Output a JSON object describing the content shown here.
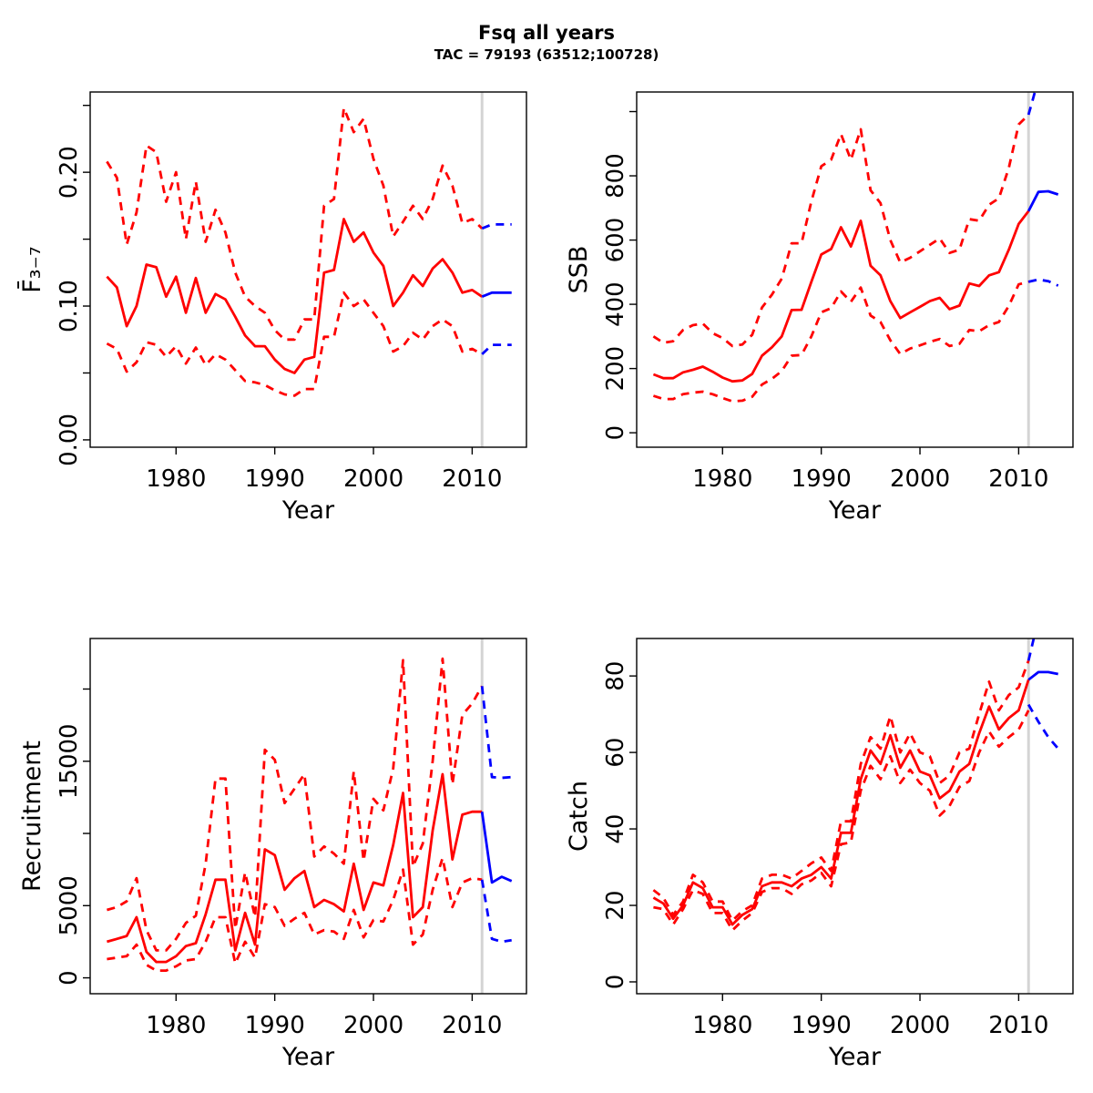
{
  "header": {
    "title": "Fsq all years",
    "subtitle": "TAC = 79193 (63512;100728)"
  },
  "colors": {
    "history": "#ff0000",
    "forecast": "#0000ff",
    "vline": "#d4d4d4",
    "axis": "#000000"
  },
  "chart_data": [
    {
      "type": "line",
      "name": "fbar",
      "title": "",
      "xlabel": "Year",
      "ylabel": "F̄₃₋₇",
      "xlim": [
        1971.3,
        2015.5
      ],
      "ylim": [
        -0.0055,
        0.26
      ],
      "xticks": [
        [
          1980,
          "1980"
        ],
        [
          1990,
          "1990"
        ],
        [
          2000,
          "2000"
        ],
        [
          2010,
          "2010"
        ]
      ],
      "yticks": [
        [
          0,
          "0.00"
        ],
        [
          0.05,
          ""
        ],
        [
          0.1,
          "0.10"
        ],
        [
          0.15,
          ""
        ],
        [
          0.2,
          "0.20"
        ],
        [
          0.25,
          ""
        ]
      ],
      "vline": 2011,
      "grid": false,
      "years": [
        1973,
        1974,
        1975,
        1976,
        1977,
        1978,
        1979,
        1980,
        1981,
        1982,
        1983,
        1984,
        1985,
        1986,
        1987,
        1988,
        1989,
        1990,
        1991,
        1992,
        1993,
        1994,
        1995,
        1996,
        1997,
        1998,
        1999,
        2000,
        2001,
        2002,
        2003,
        2004,
        2005,
        2006,
        2007,
        2008,
        2009,
        2010,
        2011
      ],
      "forecast_years": [
        2011,
        2012,
        2013,
        2014
      ],
      "series": [
        {
          "name": "median",
          "role": "history",
          "style": "solid",
          "values": [
            0.122,
            0.114,
            0.085,
            0.1,
            0.131,
            0.129,
            0.107,
            0.122,
            0.095,
            0.121,
            0.095,
            0.109,
            0.105,
            0.092,
            0.078,
            0.07,
            0.07,
            0.06,
            0.053,
            0.05,
            0.06,
            0.062,
            0.125,
            0.127,
            0.165,
            0.148,
            0.155,
            0.14,
            0.13,
            0.1,
            0.11,
            0.123,
            0.115,
            0.128,
            0.135,
            0.125,
            0.11,
            0.112,
            0.107
          ]
        },
        {
          "name": "upper-ci",
          "role": "history",
          "style": "dashed",
          "values": [
            0.208,
            0.196,
            0.146,
            0.17,
            0.22,
            0.215,
            0.178,
            0.2,
            0.15,
            0.193,
            0.148,
            0.172,
            0.155,
            0.125,
            0.107,
            0.1,
            0.095,
            0.082,
            0.075,
            0.075,
            0.09,
            0.09,
            0.175,
            0.18,
            0.248,
            0.23,
            0.24,
            0.21,
            0.19,
            0.152,
            0.163,
            0.175,
            0.165,
            0.18,
            0.205,
            0.19,
            0.162,
            0.165,
            0.158
          ]
        },
        {
          "name": "lower-ci",
          "role": "history",
          "style": "dashed",
          "values": [
            0.072,
            0.068,
            0.051,
            0.058,
            0.073,
            0.071,
            0.062,
            0.07,
            0.057,
            0.069,
            0.056,
            0.064,
            0.06,
            0.052,
            0.044,
            0.043,
            0.041,
            0.037,
            0.034,
            0.033,
            0.038,
            0.038,
            0.077,
            0.077,
            0.11,
            0.1,
            0.105,
            0.095,
            0.085,
            0.066,
            0.07,
            0.08,
            0.075,
            0.085,
            0.09,
            0.085,
            0.066,
            0.068,
            0.064
          ]
        },
        {
          "name": "forecast-median",
          "role": "forecast",
          "style": "solid",
          "values": [
            0.107,
            0.11,
            0.11,
            0.11
          ]
        },
        {
          "name": "forecast-upper-ci",
          "role": "forecast",
          "style": "dashed",
          "values": [
            0.158,
            0.161,
            0.161,
            0.161
          ]
        },
        {
          "name": "forecast-lower-ci",
          "role": "forecast",
          "style": "dashed",
          "values": [
            0.064,
            0.071,
            0.071,
            0.071
          ]
        }
      ]
    },
    {
      "type": "line",
      "name": "ssb",
      "title": "",
      "xlabel": "Year",
      "ylabel": "SSB",
      "xlim": [
        1971.3,
        2015.5
      ],
      "ylim": [
        -45,
        1061
      ],
      "xticks": [
        [
          1980,
          "1980"
        ],
        [
          1990,
          "1990"
        ],
        [
          2000,
          "2000"
        ],
        [
          2010,
          "2010"
        ]
      ],
      "yticks": [
        [
          0,
          "0"
        ],
        [
          200,
          "200"
        ],
        [
          400,
          "400"
        ],
        [
          600,
          "600"
        ],
        [
          800,
          "800"
        ],
        [
          1000,
          ""
        ]
      ],
      "vline": 2011,
      "grid": false,
      "years": [
        1973,
        1974,
        1975,
        1976,
        1977,
        1978,
        1979,
        1980,
        1981,
        1982,
        1983,
        1984,
        1985,
        1986,
        1987,
        1988,
        1989,
        1990,
        1991,
        1992,
        1993,
        1994,
        1995,
        1996,
        1997,
        1998,
        1999,
        2000,
        2001,
        2002,
        2003,
        2004,
        2005,
        2006,
        2007,
        2008,
        2009,
        2010,
        2011
      ],
      "forecast_years": [
        2011,
        2012,
        2013,
        2014
      ],
      "series": [
        {
          "name": "median",
          "role": "history",
          "style": "solid",
          "values": [
            182,
            170,
            170,
            188,
            196,
            206,
            190,
            172,
            160,
            163,
            183,
            240,
            266,
            300,
            382,
            383,
            470,
            555,
            572,
            640,
            580,
            660,
            520,
            490,
            410,
            357,
            375,
            392,
            410,
            420,
            385,
            396,
            465,
            457,
            490,
            500,
            570,
            650,
            690
          ]
        },
        {
          "name": "upper-ci",
          "role": "history",
          "style": "dashed",
          "values": [
            300,
            280,
            285,
            320,
            335,
            340,
            310,
            295,
            270,
            275,
            305,
            390,
            430,
            480,
            590,
            590,
            720,
            830,
            850,
            930,
            850,
            945,
            755,
            715,
            600,
            530,
            545,
            565,
            585,
            605,
            560,
            570,
            665,
            660,
            710,
            730,
            825,
            960,
            990
          ]
        },
        {
          "name": "lower-ci",
          "role": "history",
          "style": "dashed",
          "values": [
            115,
            105,
            105,
            120,
            125,
            128,
            120,
            108,
            98,
            100,
            112,
            150,
            168,
            192,
            240,
            242,
            300,
            375,
            388,
            440,
            408,
            452,
            365,
            345,
            288,
            245,
            262,
            272,
            283,
            292,
            270,
            277,
            320,
            316,
            335,
            345,
            395,
            462,
            470
          ]
        },
        {
          "name": "forecast-median",
          "role": "forecast",
          "style": "solid",
          "values": [
            690,
            750,
            752,
            742
          ]
        },
        {
          "name": "forecast-upper-ci",
          "role": "forecast",
          "style": "dashed",
          "values": [
            990,
            1100,
            1140,
            1160
          ]
        },
        {
          "name": "forecast-lower-ci",
          "role": "forecast",
          "style": "dashed",
          "values": [
            470,
            477,
            472,
            458
          ]
        }
      ]
    },
    {
      "type": "line",
      "name": "recruitment",
      "title": "",
      "xlabel": "Year",
      "ylabel": "Recruitment",
      "xlim": [
        1971.3,
        2015.5
      ],
      "ylim": [
        -1100,
        23500
      ],
      "xticks": [
        [
          1980,
          "1980"
        ],
        [
          1990,
          "1990"
        ],
        [
          2000,
          "2000"
        ],
        [
          2010,
          "2010"
        ]
      ],
      "yticks": [
        [
          0,
          "0"
        ],
        [
          5000,
          "5000"
        ],
        [
          10000,
          ""
        ],
        [
          15000,
          "15000"
        ],
        [
          20000,
          ""
        ]
      ],
      "vline": 2011,
      "grid": false,
      "years": [
        1973,
        1974,
        1975,
        1976,
        1977,
        1978,
        1979,
        1980,
        1981,
        1982,
        1983,
        1984,
        1985,
        1986,
        1987,
        1988,
        1989,
        1990,
        1991,
        1992,
        1993,
        1994,
        1995,
        1996,
        1997,
        1998,
        1999,
        2000,
        2001,
        2002,
        2003,
        2004,
        2005,
        2006,
        2007,
        2008,
        2009,
        2010,
        2011
      ],
      "forecast_years": [
        2011,
        2012,
        2013,
        2014
      ],
      "series": [
        {
          "name": "median",
          "role": "history",
          "style": "solid",
          "values": [
            2500,
            2700,
            2900,
            4200,
            1800,
            1100,
            1100,
            1500,
            2200,
            2400,
            4400,
            6800,
            6800,
            1900,
            4500,
            2300,
            8900,
            8500,
            6100,
            6900,
            7400,
            4900,
            5400,
            5100,
            4600,
            7900,
            4700,
            6600,
            6400,
            9200,
            12800,
            4200,
            4900,
            10200,
            14100,
            8200,
            11300,
            11500,
            11500
          ]
        },
        {
          "name": "upper-ci",
          "role": "history",
          "style": "dashed",
          "values": [
            4700,
            4900,
            5300,
            6900,
            3300,
            1900,
            1900,
            2700,
            3800,
            4300,
            7900,
            13800,
            13800,
            3400,
            7300,
            4200,
            15800,
            15100,
            12100,
            13100,
            14100,
            8400,
            9100,
            8600,
            7900,
            14300,
            8100,
            12400,
            11600,
            14500,
            22000,
            7700,
            9300,
            15000,
            22100,
            13400,
            18200,
            19000,
            20200
          ]
        },
        {
          "name": "lower-ci",
          "role": "history",
          "style": "dashed",
          "values": [
            1300,
            1400,
            1500,
            2300,
            900,
            500,
            500,
            800,
            1200,
            1300,
            2500,
            4200,
            4200,
            1000,
            2500,
            1400,
            5100,
            4900,
            3600,
            4100,
            4500,
            3000,
            3300,
            3200,
            2700,
            4700,
            2800,
            4000,
            3900,
            5400,
            7500,
            2300,
            3000,
            6100,
            8300,
            4900,
            6600,
            6900,
            6800
          ]
        },
        {
          "name": "forecast-median",
          "role": "forecast",
          "style": "solid",
          "values": [
            11500,
            6600,
            7000,
            6700
          ]
        },
        {
          "name": "forecast-upper-ci",
          "role": "forecast",
          "style": "dashed",
          "values": [
            20200,
            13900,
            13850,
            13900
          ]
        },
        {
          "name": "forecast-lower-ci",
          "role": "forecast",
          "style": "dashed",
          "values": [
            6800,
            2700,
            2500,
            2600
          ]
        }
      ]
    },
    {
      "type": "line",
      "name": "catch",
      "title": "",
      "xlabel": "Year",
      "ylabel": "Catch",
      "xlim": [
        1971.3,
        2015.5
      ],
      "ylim": [
        -3.1,
        89.8
      ],
      "xticks": [
        [
          1980,
          "1980"
        ],
        [
          1990,
          "1990"
        ],
        [
          2000,
          "2000"
        ],
        [
          2010,
          "2010"
        ]
      ],
      "yticks": [
        [
          0,
          "0"
        ],
        [
          20,
          "20"
        ],
        [
          40,
          "40"
        ],
        [
          60,
          "60"
        ],
        [
          80,
          "80"
        ]
      ],
      "vline": 2011,
      "grid": false,
      "years": [
        1973,
        1974,
        1975,
        1976,
        1977,
        1978,
        1979,
        1980,
        1981,
        1982,
        1983,
        1984,
        1985,
        1986,
        1987,
        1988,
        1989,
        1990,
        1991,
        1992,
        1993,
        1994,
        1995,
        1996,
        1997,
        1998,
        1999,
        2000,
        2001,
        2002,
        2003,
        2004,
        2005,
        2006,
        2007,
        2008,
        2009,
        2010,
        2011
      ],
      "forecast_years": [
        2011,
        2012,
        2013,
        2014
      ],
      "series": [
        {
          "name": "median",
          "role": "history",
          "style": "solid",
          "values": [
            22,
            20.5,
            16.5,
            20,
            26,
            24.5,
            19.5,
            19.5,
            15,
            17.5,
            19,
            25,
            26,
            26,
            25,
            27,
            28,
            30,
            27,
            39,
            39,
            53,
            60.5,
            57,
            64.5,
            56,
            60.5,
            55,
            54,
            48,
            50,
            55,
            57,
            65,
            72,
            66,
            69,
            71,
            79
          ]
        },
        {
          "name": "upper-ci",
          "role": "history",
          "style": "dashed",
          "values": [
            24,
            22,
            17.5,
            21,
            28,
            26,
            21,
            21,
            16,
            18.5,
            20,
            27,
            28,
            28,
            27,
            29,
            31,
            32.5,
            29,
            42,
            42,
            57,
            64,
            61,
            69.5,
            60,
            65,
            60,
            59,
            52,
            54,
            60,
            61,
            70,
            78.5,
            71,
            75,
            77,
            84
          ]
        },
        {
          "name": "lower-ci",
          "role": "history",
          "style": "dashed",
          "values": [
            19.5,
            19,
            15,
            19,
            24,
            23,
            18,
            18,
            13.5,
            16,
            18,
            23.5,
            24.5,
            24.5,
            23,
            25.5,
            26.5,
            28.5,
            25,
            36,
            36.5,
            50,
            56.5,
            53,
            59,
            52,
            55.5,
            52,
            50,
            43.5,
            46,
            51,
            52.5,
            60,
            65.5,
            61.5,
            64,
            66,
            71
          ]
        },
        {
          "name": "forecast-median",
          "role": "forecast",
          "style": "solid",
          "values": [
            79,
            81,
            81,
            80.5
          ]
        },
        {
          "name": "forecast-upper-ci",
          "role": "forecast",
          "style": "dashed",
          "values": [
            84,
            95,
            100,
            102
          ]
        },
        {
          "name": "forecast-lower-ci",
          "role": "forecast",
          "style": "dashed",
          "values": [
            72.5,
            68,
            64,
            61
          ]
        }
      ]
    }
  ]
}
